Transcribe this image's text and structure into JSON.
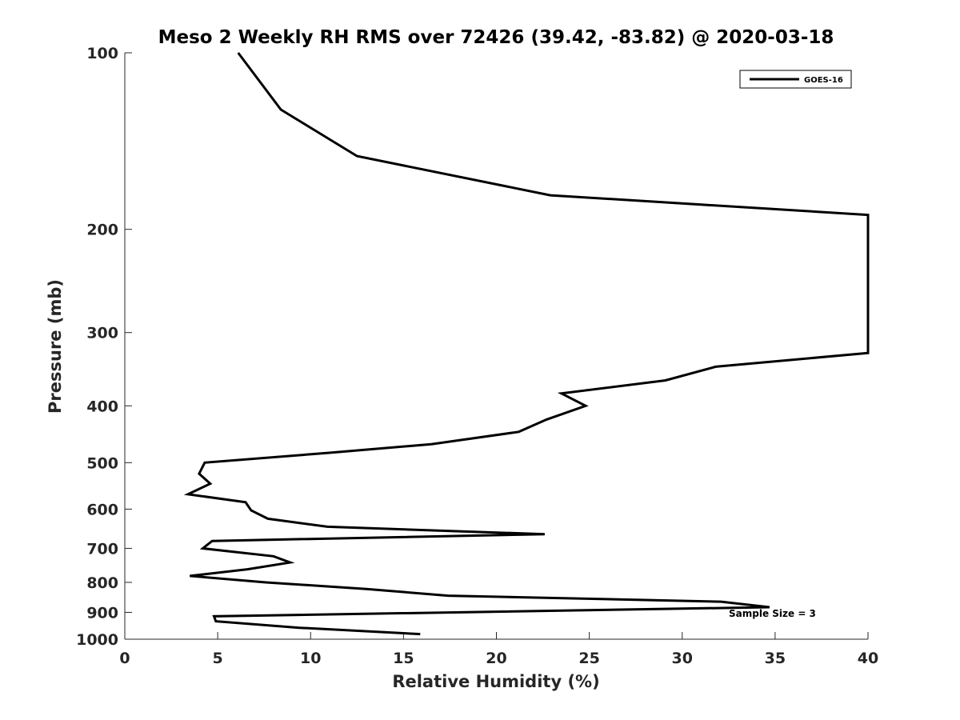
{
  "chart_data": {
    "type": "line",
    "title": "Meso 2 Weekly RH RMS over 72426 (39.42, -83.82) @ 2020-03-18",
    "xlabel": "Relative Humidity (%)",
    "ylabel": "Pressure (mb)",
    "xlim": [
      0,
      40
    ],
    "ylim": [
      100,
      1000
    ],
    "yscale": "log",
    "yreversed": true,
    "grid": false,
    "legend_position": "top-right",
    "x_ticks": [
      "0",
      "5",
      "10",
      "15",
      "20",
      "25",
      "30",
      "35",
      "40"
    ],
    "y_ticks": [
      "100",
      "200",
      "300",
      "400",
      "500",
      "600",
      "700",
      "800",
      "900",
      "1000"
    ],
    "annotation": "Sample Size = 3",
    "series": [
      {
        "name": "GOES-16",
        "color": "#000000",
        "points": [
          {
            "x": 6.1,
            "y": 100
          },
          {
            "x": 8.4,
            "y": 125
          },
          {
            "x": 12.5,
            "y": 150
          },
          {
            "x": 22.9,
            "y": 175
          },
          {
            "x": 40.0,
            "y": 189
          },
          {
            "x": 40.0,
            "y": 325
          },
          {
            "x": 31.8,
            "y": 343
          },
          {
            "x": 29.1,
            "y": 362
          },
          {
            "x": 23.5,
            "y": 381
          },
          {
            "x": 24.8,
            "y": 400
          },
          {
            "x": 22.7,
            "y": 422
          },
          {
            "x": 21.2,
            "y": 443
          },
          {
            "x": 16.5,
            "y": 465
          },
          {
            "x": 11.0,
            "y": 481
          },
          {
            "x": 4.3,
            "y": 500
          },
          {
            "x": 4.0,
            "y": 522
          },
          {
            "x": 4.6,
            "y": 543
          },
          {
            "x": 3.4,
            "y": 566
          },
          {
            "x": 6.5,
            "y": 584
          },
          {
            "x": 6.8,
            "y": 603
          },
          {
            "x": 7.7,
            "y": 623
          },
          {
            "x": 10.9,
            "y": 643
          },
          {
            "x": 16.9,
            "y": 653
          },
          {
            "x": 22.6,
            "y": 662
          },
          {
            "x": 4.7,
            "y": 680
          },
          {
            "x": 4.2,
            "y": 700
          },
          {
            "x": 8.0,
            "y": 722
          },
          {
            "x": 8.9,
            "y": 740
          },
          {
            "x": 6.6,
            "y": 760
          },
          {
            "x": 3.5,
            "y": 780
          },
          {
            "x": 7.6,
            "y": 800
          },
          {
            "x": 13.0,
            "y": 821
          },
          {
            "x": 17.4,
            "y": 843
          },
          {
            "x": 32.1,
            "y": 863
          },
          {
            "x": 34.7,
            "y": 882
          },
          {
            "x": 4.8,
            "y": 914
          },
          {
            "x": 4.9,
            "y": 932
          },
          {
            "x": 9.4,
            "y": 956
          },
          {
            "x": 15.9,
            "y": 980
          }
        ]
      }
    ]
  }
}
